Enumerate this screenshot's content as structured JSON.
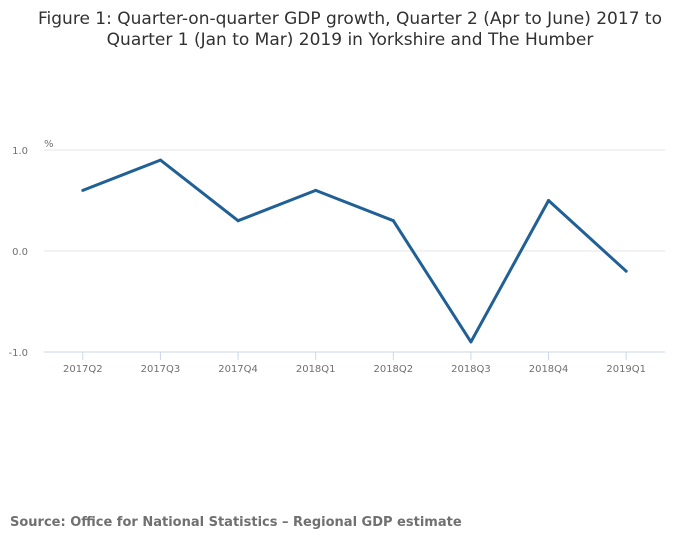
{
  "chart_data": {
    "type": "line",
    "title_lines": [
      "Figure 1: Quarter-on-quarter GDP growth, Quarter 2 (Apr to June) 2017 to",
      "Quarter 1 (Jan to Mar) 2019 in Yorkshire and The Humber"
    ],
    "ylabel": "%",
    "xlabel": "",
    "categories": [
      "2017Q2",
      "2017Q3",
      "2017Q4",
      "2018Q1",
      "2018Q2",
      "2018Q3",
      "2018Q4",
      "2019Q1"
    ],
    "series": [
      {
        "name": "GDP growth",
        "values": [
          0.6,
          0.9,
          0.3,
          0.6,
          0.3,
          -0.9,
          0.5,
          -0.2
        ],
        "color": "#206095"
      }
    ],
    "ylim": [
      -1.0,
      1.0
    ],
    "yticks": [
      1.0,
      0.0,
      -1.0
    ],
    "ytick_labels": [
      "1.0",
      "0.0",
      "-1.0"
    ],
    "grid": true,
    "legend": "none"
  },
  "source": "Source: Office for National Statistics – Regional GDP estimate"
}
